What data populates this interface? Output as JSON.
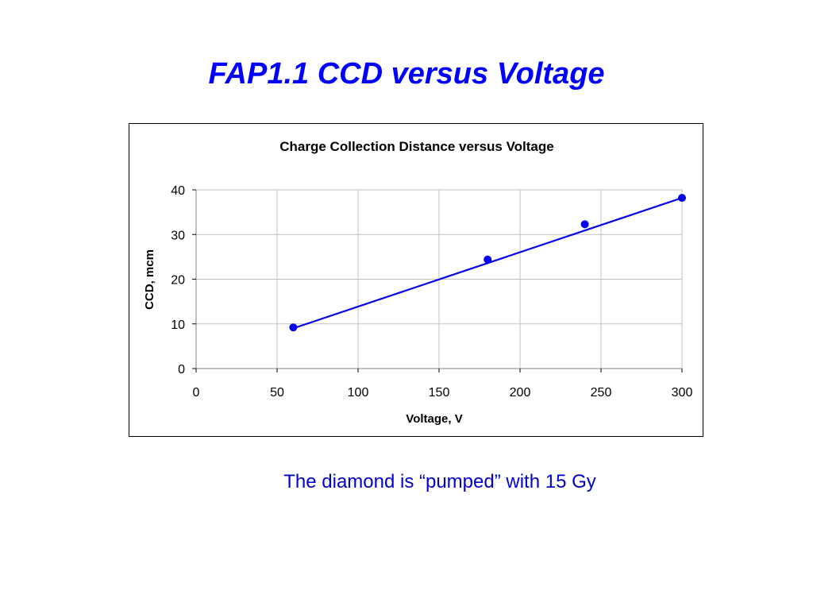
{
  "slide": {
    "title": "FAP1.1 CCD versus Voltage",
    "caption": "The diamond is “pumped” with 15 Gy"
  },
  "colors": {
    "title": "#0000ff",
    "caption": "#0000cc",
    "series": "#0000ee",
    "grid": "#c0c0c0"
  },
  "chart_data": {
    "type": "scatter",
    "title": "Charge Collection Distance versus Voltage",
    "xlabel": "Voltage, V",
    "ylabel": "CCD, mcm",
    "xlim": [
      0,
      300
    ],
    "ylim": [
      0,
      40
    ],
    "xticks": [
      0,
      50,
      100,
      150,
      200,
      250,
      300
    ],
    "yticks": [
      0,
      10,
      20,
      30,
      40
    ],
    "grid": true,
    "legend": "none",
    "series": [
      {
        "x": [
          60,
          180,
          240,
          300
        ],
        "y": [
          9.2,
          24.4,
          32.3,
          38.2
        ],
        "marker": "circle"
      }
    ],
    "trendline": {
      "type": "linear",
      "x": [
        60,
        300
      ],
      "y": [
        9.0,
        38.2
      ]
    }
  }
}
